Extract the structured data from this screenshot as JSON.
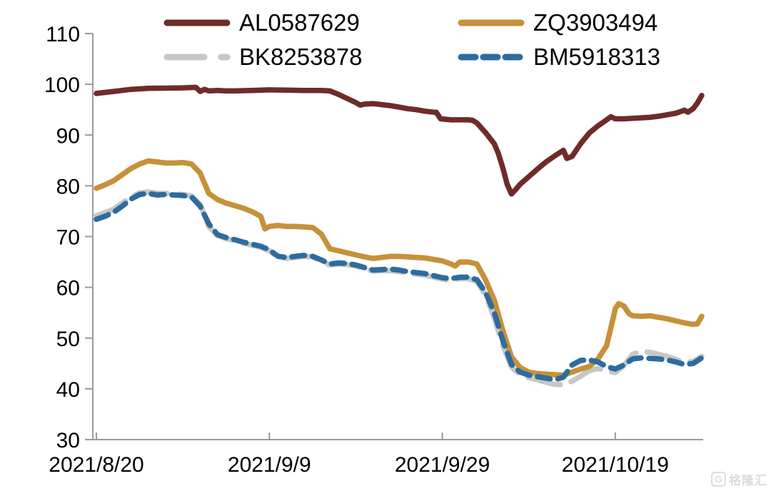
{
  "watermark": {
    "logo_text": "G",
    "brand_text": "格隆汇"
  },
  "chart_data": {
    "type": "line",
    "title": "",
    "background": "#FFFFFF",
    "axis_color": "#9A9A9A",
    "text_color": "#000000",
    "grid": "off",
    "legend": {
      "position": "top",
      "columns": 2,
      "entries": [
        "AL0587629",
        "ZQ3903494",
        "BK8253878",
        "BM5918313"
      ]
    },
    "x_axis": {
      "tick_labels": [
        "2021/8/20",
        "2021/9/9",
        "2021/9/29",
        "2021/10/19"
      ],
      "tick_positions_days": [
        0,
        20,
        40,
        60
      ],
      "domain_days": [
        0,
        70
      ]
    },
    "y_axis": {
      "min": 30,
      "max": 110,
      "step": 10,
      "tick_labels": [
        "30",
        "40",
        "50",
        "60",
        "70",
        "80",
        "90",
        "100",
        "110"
      ]
    },
    "series": [
      {
        "name": "AL0587629",
        "color": "#6E2C29",
        "line_style": "solid",
        "points": [
          [
            0,
            98.2
          ],
          [
            1,
            98.4
          ],
          [
            2,
            98.6
          ],
          [
            3,
            98.8
          ],
          [
            4,
            99.0
          ],
          [
            5,
            99.1
          ],
          [
            6,
            99.2
          ],
          [
            8,
            99.25
          ],
          [
            10,
            99.3
          ],
          [
            11.5,
            99.4
          ],
          [
            12,
            98.6
          ],
          [
            12.5,
            99.0
          ],
          [
            13,
            98.7
          ],
          [
            14,
            98.8
          ],
          [
            15,
            98.7
          ],
          [
            16,
            98.7
          ],
          [
            17,
            98.75
          ],
          [
            18,
            98.8
          ],
          [
            20,
            98.9
          ],
          [
            22,
            98.85
          ],
          [
            24,
            98.8
          ],
          [
            26,
            98.8
          ],
          [
            27,
            98.7
          ],
          [
            28,
            98.0
          ],
          [
            29,
            97.2
          ],
          [
            30,
            96.4
          ],
          [
            30.5,
            95.9
          ],
          [
            31,
            96.1
          ],
          [
            32,
            96.2
          ],
          [
            33,
            96.0
          ],
          [
            34,
            95.8
          ],
          [
            35,
            95.5
          ],
          [
            36,
            95.2
          ],
          [
            37,
            95.0
          ],
          [
            38,
            94.7
          ],
          [
            39,
            94.5
          ],
          [
            39.3,
            94.5
          ],
          [
            39.8,
            93.2
          ],
          [
            41,
            93.0
          ],
          [
            42,
            93.0
          ],
          [
            43,
            93.0
          ],
          [
            43.5,
            92.9
          ],
          [
            44,
            92.4
          ],
          [
            45,
            90.5
          ],
          [
            46,
            88.3
          ],
          [
            46.5,
            86.3
          ],
          [
            47,
            83.5
          ],
          [
            47.5,
            80.3
          ],
          [
            48,
            78.4
          ],
          [
            48.5,
            79.3
          ],
          [
            49,
            80.3
          ],
          [
            50,
            81.8
          ],
          [
            51,
            83.3
          ],
          [
            52,
            84.7
          ],
          [
            53,
            85.9
          ],
          [
            54,
            87.0
          ],
          [
            54.4,
            85.4
          ],
          [
            55,
            85.8
          ],
          [
            56,
            88.3
          ],
          [
            57,
            90.4
          ],
          [
            58,
            91.8
          ],
          [
            59,
            93.0
          ],
          [
            59.5,
            93.6
          ],
          [
            60,
            93.2
          ],
          [
            61,
            93.2
          ],
          [
            62,
            93.3
          ],
          [
            63,
            93.4
          ],
          [
            64,
            93.5
          ],
          [
            65,
            93.7
          ],
          [
            66,
            94.0
          ],
          [
            67,
            94.3
          ],
          [
            68,
            94.9
          ],
          [
            68.4,
            94.5
          ],
          [
            69,
            95.2
          ],
          [
            69.5,
            96.3
          ],
          [
            70,
            97.8
          ]
        ]
      },
      {
        "name": "ZQ3903494",
        "color": "#C6913A",
        "line_style": "solid",
        "points": [
          [
            0,
            79.5
          ],
          [
            1,
            80.2
          ],
          [
            2,
            81.0
          ],
          [
            3,
            82.2
          ],
          [
            4,
            83.4
          ],
          [
            5,
            84.3
          ],
          [
            6,
            84.9
          ],
          [
            7,
            84.7
          ],
          [
            8,
            84.5
          ],
          [
            9,
            84.5
          ],
          [
            10,
            84.6
          ],
          [
            11,
            84.3
          ],
          [
            12,
            82.5
          ],
          [
            13,
            78.5
          ],
          [
            14,
            77.3
          ],
          [
            15,
            76.6
          ],
          [
            16,
            76.1
          ],
          [
            17,
            75.6
          ],
          [
            18,
            74.9
          ],
          [
            19,
            74.0
          ],
          [
            19.5,
            71.5
          ],
          [
            20,
            72.0
          ],
          [
            21,
            72.2
          ],
          [
            22,
            72.0
          ],
          [
            23,
            72.0
          ],
          [
            24,
            71.9
          ],
          [
            25,
            71.8
          ],
          [
            26,
            70.5
          ],
          [
            27,
            67.6
          ],
          [
            28,
            67.2
          ],
          [
            29,
            66.8
          ],
          [
            30,
            66.4
          ],
          [
            31,
            66.0
          ],
          [
            32,
            65.7
          ],
          [
            33,
            65.9
          ],
          [
            34,
            66.1
          ],
          [
            35,
            66.1
          ],
          [
            36,
            66.0
          ],
          [
            37,
            65.9
          ],
          [
            38,
            65.8
          ],
          [
            39,
            65.5
          ],
          [
            40,
            65.2
          ],
          [
            41,
            64.6
          ],
          [
            41.5,
            64.2
          ],
          [
            42,
            65.0
          ],
          [
            43,
            65.0
          ],
          [
            44,
            64.6
          ],
          [
            45,
            61.5
          ],
          [
            46,
            57.5
          ],
          [
            47,
            51.5
          ],
          [
            48,
            46.3
          ],
          [
            49,
            44.2
          ],
          [
            50,
            43.3
          ],
          [
            51,
            43.0
          ],
          [
            52,
            42.9
          ],
          [
            53,
            42.8
          ],
          [
            54,
            42.7
          ],
          [
            55,
            43.3
          ],
          [
            56,
            43.9
          ],
          [
            57,
            44.4
          ],
          [
            58,
            45.9
          ],
          [
            59,
            48.5
          ],
          [
            59.7,
            53.5
          ],
          [
            60,
            55.8
          ],
          [
            60.4,
            56.8
          ],
          [
            61,
            56.3
          ],
          [
            61.6,
            54.8
          ],
          [
            62,
            54.4
          ],
          [
            63,
            54.3
          ],
          [
            64,
            54.4
          ],
          [
            65,
            54.1
          ],
          [
            66,
            53.8
          ],
          [
            67,
            53.4
          ],
          [
            68,
            53.0
          ],
          [
            69,
            52.7
          ],
          [
            69.5,
            52.8
          ],
          [
            70,
            54.3
          ]
        ]
      },
      {
        "name": "BK8253878",
        "color": "#C7C7C7",
        "line_style": "long-dash",
        "points": [
          [
            0,
            74.1
          ],
          [
            1,
            74.7
          ],
          [
            2,
            75.4
          ],
          [
            3,
            76.6
          ],
          [
            4,
            77.8
          ],
          [
            5,
            78.6
          ],
          [
            6,
            78.8
          ],
          [
            7,
            78.5
          ],
          [
            8,
            78.5
          ],
          [
            9,
            78.4
          ],
          [
            10,
            78.3
          ],
          [
            11,
            78.0
          ],
          [
            12,
            76.3
          ],
          [
            13,
            72.0
          ],
          [
            14,
            70.2
          ],
          [
            15,
            69.6
          ],
          [
            16,
            69.2
          ],
          [
            17,
            68.7
          ],
          [
            18,
            68.3
          ],
          [
            19,
            67.9
          ],
          [
            20,
            67.2
          ],
          [
            21,
            65.9
          ],
          [
            22,
            65.7
          ],
          [
            23,
            65.9
          ],
          [
            24,
            66.1
          ],
          [
            25,
            66.0
          ],
          [
            26,
            65.2
          ],
          [
            27,
            64.4
          ],
          [
            28,
            64.6
          ],
          [
            29,
            64.5
          ],
          [
            30,
            64.2
          ],
          [
            31,
            63.7
          ],
          [
            32,
            63.2
          ],
          [
            33,
            63.3
          ],
          [
            34,
            63.3
          ],
          [
            35,
            63.1
          ],
          [
            36,
            62.8
          ],
          [
            37,
            62.6
          ],
          [
            38,
            62.4
          ],
          [
            39,
            62.0
          ],
          [
            40,
            61.6
          ],
          [
            41,
            61.4
          ],
          [
            42,
            61.7
          ],
          [
            43,
            61.7
          ],
          [
            44,
            61.2
          ],
          [
            45,
            58.5
          ],
          [
            46,
            54.0
          ],
          [
            47,
            48.5
          ],
          [
            48,
            44.3
          ],
          [
            49,
            42.8
          ],
          [
            50,
            42.2
          ],
          [
            51,
            41.8
          ],
          [
            52,
            41.3
          ],
          [
            53,
            40.9
          ],
          [
            54,
            40.8
          ],
          [
            55,
            41.5
          ],
          [
            56,
            42.5
          ],
          [
            57,
            43.6
          ],
          [
            58,
            44.0
          ],
          [
            59,
            43.6
          ],
          [
            60,
            43.2
          ],
          [
            61,
            44.6
          ],
          [
            62,
            46.8
          ],
          [
            63,
            47.4
          ],
          [
            64,
            47.2
          ],
          [
            65,
            46.8
          ],
          [
            66,
            46.4
          ],
          [
            67,
            45.8
          ],
          [
            68,
            45.2
          ],
          [
            69,
            45.4
          ],
          [
            70,
            46.4
          ]
        ]
      },
      {
        "name": "BM5918313",
        "color": "#2E6B9E",
        "line_style": "dash",
        "points": [
          [
            0,
            73.4
          ],
          [
            1,
            74.0
          ],
          [
            2,
            74.8
          ],
          [
            3,
            76.0
          ],
          [
            4,
            77.4
          ],
          [
            5,
            78.3
          ],
          [
            6,
            78.5
          ],
          [
            7,
            78.2
          ],
          [
            8,
            78.3
          ],
          [
            9,
            78.2
          ],
          [
            10,
            78.1
          ],
          [
            11,
            77.8
          ],
          [
            12,
            76.0
          ],
          [
            13,
            72.5
          ],
          [
            14,
            70.4
          ],
          [
            15,
            69.8
          ],
          [
            16,
            69.4
          ],
          [
            17,
            68.9
          ],
          [
            18,
            68.5
          ],
          [
            19,
            68.1
          ],
          [
            20,
            67.4
          ],
          [
            21,
            66.1
          ],
          [
            22,
            65.9
          ],
          [
            23,
            66.1
          ],
          [
            24,
            66.3
          ],
          [
            25,
            66.1
          ],
          [
            26,
            65.4
          ],
          [
            27,
            64.6
          ],
          [
            28,
            64.8
          ],
          [
            29,
            64.7
          ],
          [
            30,
            64.4
          ],
          [
            31,
            63.9
          ],
          [
            32,
            63.4
          ],
          [
            33,
            63.5
          ],
          [
            34,
            63.6
          ],
          [
            35,
            63.4
          ],
          [
            36,
            63.1
          ],
          [
            37,
            62.9
          ],
          [
            38,
            62.7
          ],
          [
            39,
            62.3
          ],
          [
            40,
            61.9
          ],
          [
            41,
            61.7
          ],
          [
            42,
            62.0
          ],
          [
            43,
            62.0
          ],
          [
            44,
            61.5
          ],
          [
            45,
            59.0
          ],
          [
            46,
            55.0
          ],
          [
            47,
            49.5
          ],
          [
            48,
            44.8
          ],
          [
            49,
            43.3
          ],
          [
            50,
            42.7
          ],
          [
            51,
            42.4
          ],
          [
            52,
            42.1
          ],
          [
            53,
            41.8
          ],
          [
            54,
            42.3
          ],
          [
            55,
            44.7
          ],
          [
            56,
            45.6
          ],
          [
            57,
            45.7
          ],
          [
            58,
            45.3
          ],
          [
            59,
            44.4
          ],
          [
            60,
            43.9
          ],
          [
            61,
            44.7
          ],
          [
            62,
            45.9
          ],
          [
            63,
            46.1
          ],
          [
            64,
            46.0
          ],
          [
            65,
            45.9
          ],
          [
            66,
            45.7
          ],
          [
            67,
            45.3
          ],
          [
            68,
            44.8
          ],
          [
            69,
            45.0
          ],
          [
            70,
            46.1
          ]
        ]
      }
    ]
  }
}
